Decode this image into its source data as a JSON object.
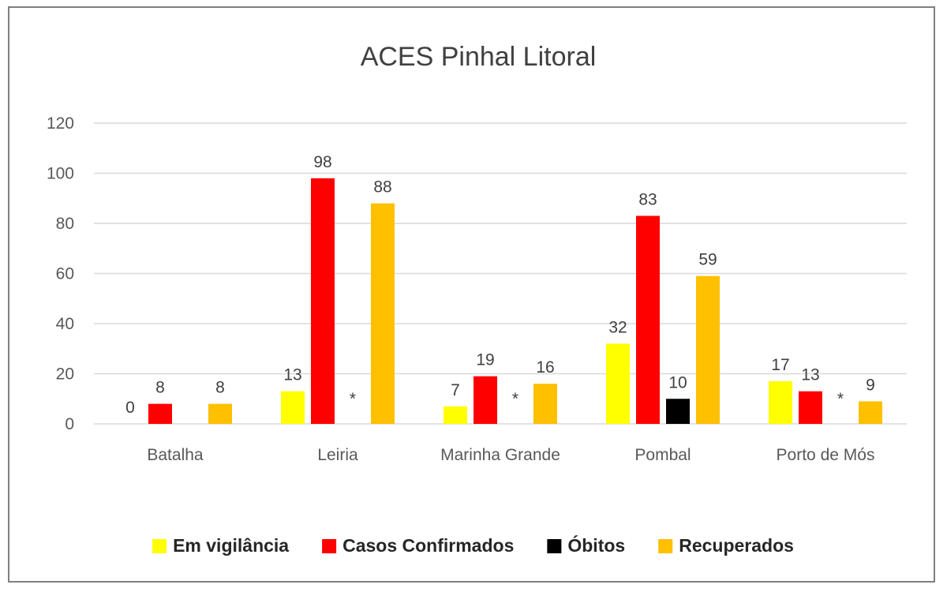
{
  "chart_data": {
    "type": "bar",
    "title": "ACES Pinhal Litoral",
    "xlabel": "",
    "ylabel": "",
    "ylim": [
      0,
      120
    ],
    "yticks": [
      0,
      20,
      40,
      60,
      80,
      100,
      120
    ],
    "grid": true,
    "legend_position": "bottom",
    "categories": [
      "Batalha",
      "Leiria",
      "Marinha Grande",
      "Pombal",
      "Porto de Mós"
    ],
    "series": [
      {
        "name": "Em vigilância",
        "color": "#FFFF00",
        "values": [
          0,
          13,
          7,
          32,
          17
        ],
        "labels": [
          "0",
          "13",
          "7",
          "32",
          "17"
        ]
      },
      {
        "name": "Casos Confirmados",
        "color": "#FF0000",
        "values": [
          8,
          98,
          19,
          83,
          13
        ],
        "labels": [
          "8",
          "98",
          "19",
          "83",
          "13"
        ]
      },
      {
        "name": "Óbitos",
        "color": "#000000",
        "values": [
          null,
          null,
          null,
          10,
          null
        ],
        "labels": [
          "",
          "*",
          "*",
          "10",
          "*"
        ]
      },
      {
        "name": "Recuperados",
        "color": "#FFC000",
        "values": [
          8,
          88,
          16,
          59,
          9
        ],
        "labels": [
          "8",
          "88",
          "16",
          "59",
          "9"
        ]
      }
    ]
  }
}
